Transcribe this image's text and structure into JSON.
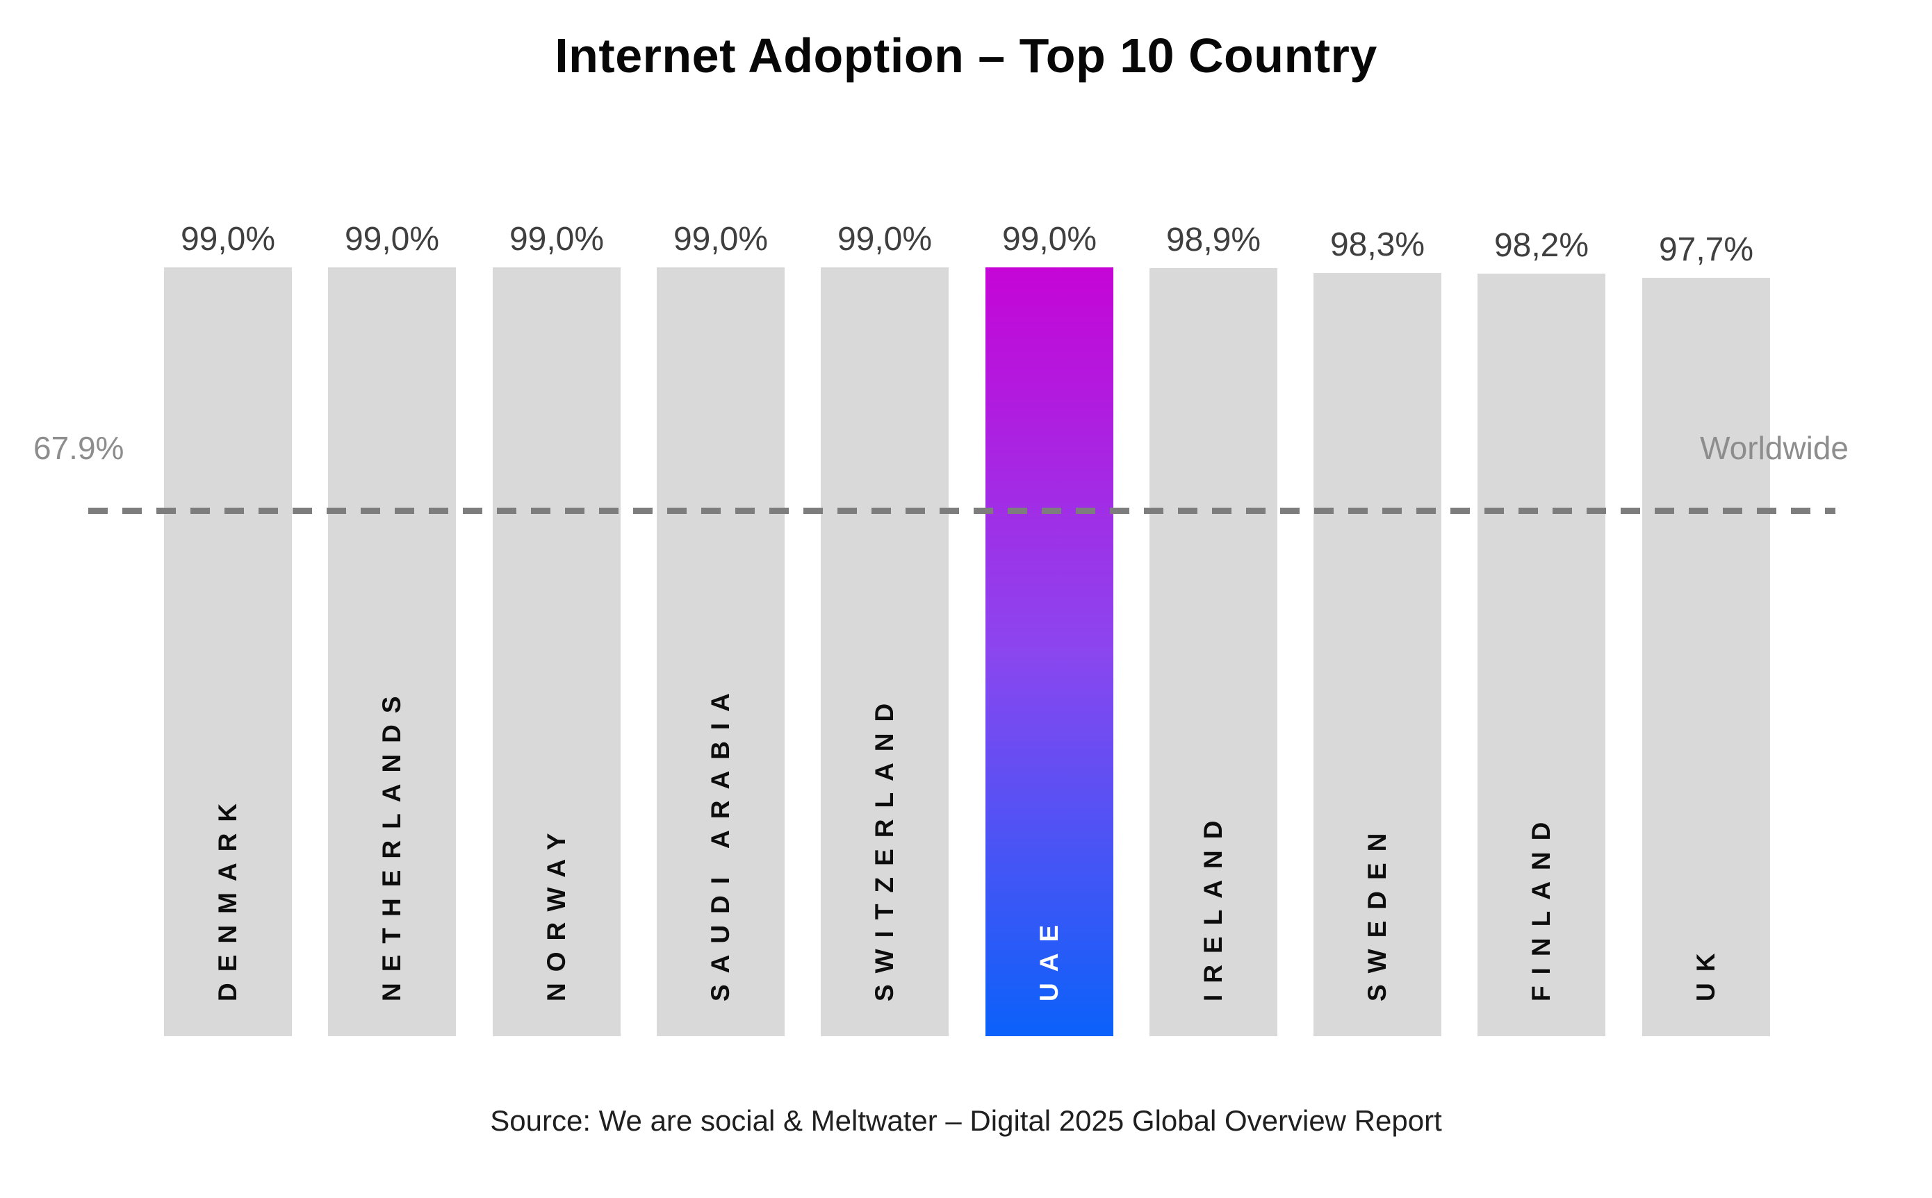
{
  "title": "Internet Adoption – Top 10 Country",
  "source_note": "Source: We are social & Meltwater – Digital 2025 Global Overview Report",
  "reference": {
    "value_label": "67.9%",
    "label": "Worldwide"
  },
  "colors": {
    "background": "#ffffff",
    "bar_default": "#d9d9d9",
    "highlight_gradient_top": "#c505d6",
    "highlight_gradient_mid": "#8b46ef",
    "highlight_gradient_bottom": "#0b61fa",
    "reference_line": "#7d7d7d",
    "reference_text": "#8d8d8d",
    "value_text": "#3f3f3f",
    "country_text": "#0d0d0d",
    "highlight_country_text": "#ffffff",
    "title_text": "#070707",
    "source_text": "#1f1f1f"
  },
  "chart_data": {
    "type": "bar",
    "title": "Internet Adoption – Top 10 Country",
    "categories": [
      "Denmark",
      "Netherlands",
      "Norway",
      "Saudi Arabia",
      "Switzerland",
      "UAE",
      "Ireland",
      "Sweden",
      "Finland",
      "UK"
    ],
    "category_labels": [
      "DENMARK",
      "NETHERLANDS",
      "NORWAY",
      "SAUDI ARABIA",
      "SWITZERLAND",
      "UAE",
      "IRELAND",
      "SWEDEN",
      "FINLAND",
      "UK"
    ],
    "values": [
      99.0,
      99.0,
      99.0,
      99.0,
      99.0,
      99.0,
      98.9,
      98.3,
      98.2,
      97.7
    ],
    "value_labels": [
      "99,0%",
      "99,0%",
      "99,0%",
      "99,0%",
      "99,0%",
      "99,0%",
      "98,9%",
      "98,3%",
      "98,2%",
      "97,7%"
    ],
    "unit": "%",
    "highlight_index": 5,
    "highlight_category": "UAE",
    "reference_line": {
      "value": 67.9,
      "value_label": "67.9%",
      "label": "Worldwide",
      "style": "dashed"
    },
    "ylim": [
      0,
      99
    ],
    "grid": false,
    "legend": false,
    "bar_orientation": "vertical",
    "category_label_orientation": "vertical-bottom-to-top",
    "source": "Source: We are social & Meltwater – Digital 2025 Global Overview Report"
  }
}
